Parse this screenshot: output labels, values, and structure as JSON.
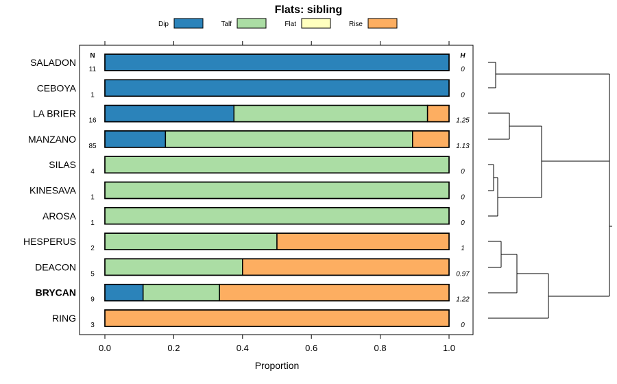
{
  "chart_data": {
    "type": "stacked-bar-horizontal",
    "title": "Flats: sibling",
    "xlabel": "Proportion",
    "xlim": [
      0,
      1
    ],
    "x_ticks": [
      "0.0",
      "0.2",
      "0.4",
      "0.6",
      "0.8",
      "1.0"
    ],
    "x_tick_values": [
      0,
      0.2,
      0.4,
      0.6,
      0.8,
      1.0
    ],
    "n_header": "N",
    "h_header": "H",
    "legend": [
      {
        "name": "Dip",
        "color": "#2b83ba"
      },
      {
        "name": "Talf",
        "color": "#abdda4"
      },
      {
        "name": "Flat",
        "color": "#ffffbf"
      },
      {
        "name": "Rise",
        "color": "#fdae61"
      }
    ],
    "series_names": [
      "Dip",
      "Talf",
      "Flat",
      "Rise"
    ],
    "rows": [
      {
        "label": "SALADON",
        "n": "11",
        "h": "0",
        "bold": false,
        "values": [
          1.0,
          0,
          0,
          0
        ]
      },
      {
        "label": "CEBOYA",
        "n": "1",
        "h": "0",
        "bold": false,
        "values": [
          1.0,
          0,
          0,
          0
        ]
      },
      {
        "label": "LA BRIER",
        "n": "16",
        "h": "1.25",
        "bold": false,
        "values": [
          0.375,
          0.5625,
          0,
          0.0625
        ]
      },
      {
        "label": "MANZANO",
        "n": "85",
        "h": "1.13",
        "bold": false,
        "values": [
          0.176,
          0.718,
          0,
          0.106
        ]
      },
      {
        "label": "SILAS",
        "n": "4",
        "h": "0",
        "bold": false,
        "values": [
          0,
          1.0,
          0,
          0
        ]
      },
      {
        "label": "KINESAVA",
        "n": "1",
        "h": "0",
        "bold": false,
        "values": [
          0,
          1.0,
          0,
          0
        ]
      },
      {
        "label": "AROSA",
        "n": "1",
        "h": "0",
        "bold": false,
        "values": [
          0,
          1.0,
          0,
          0
        ]
      },
      {
        "label": "HESPERUS",
        "n": "2",
        "h": "1",
        "bold": false,
        "values": [
          0,
          0.5,
          0,
          0.5
        ]
      },
      {
        "label": "DEACON",
        "n": "5",
        "h": "0.97",
        "bold": false,
        "values": [
          0,
          0.4,
          0,
          0.6
        ]
      },
      {
        "label": "BRYCAN",
        "n": "9",
        "h": "1.22",
        "bold": true,
        "values": [
          0.111,
          0.222,
          0,
          0.667
        ]
      },
      {
        "label": "RING",
        "n": "3",
        "h": "0",
        "bold": false,
        "values": [
          0,
          0,
          0,
          1.0
        ]
      }
    ]
  }
}
